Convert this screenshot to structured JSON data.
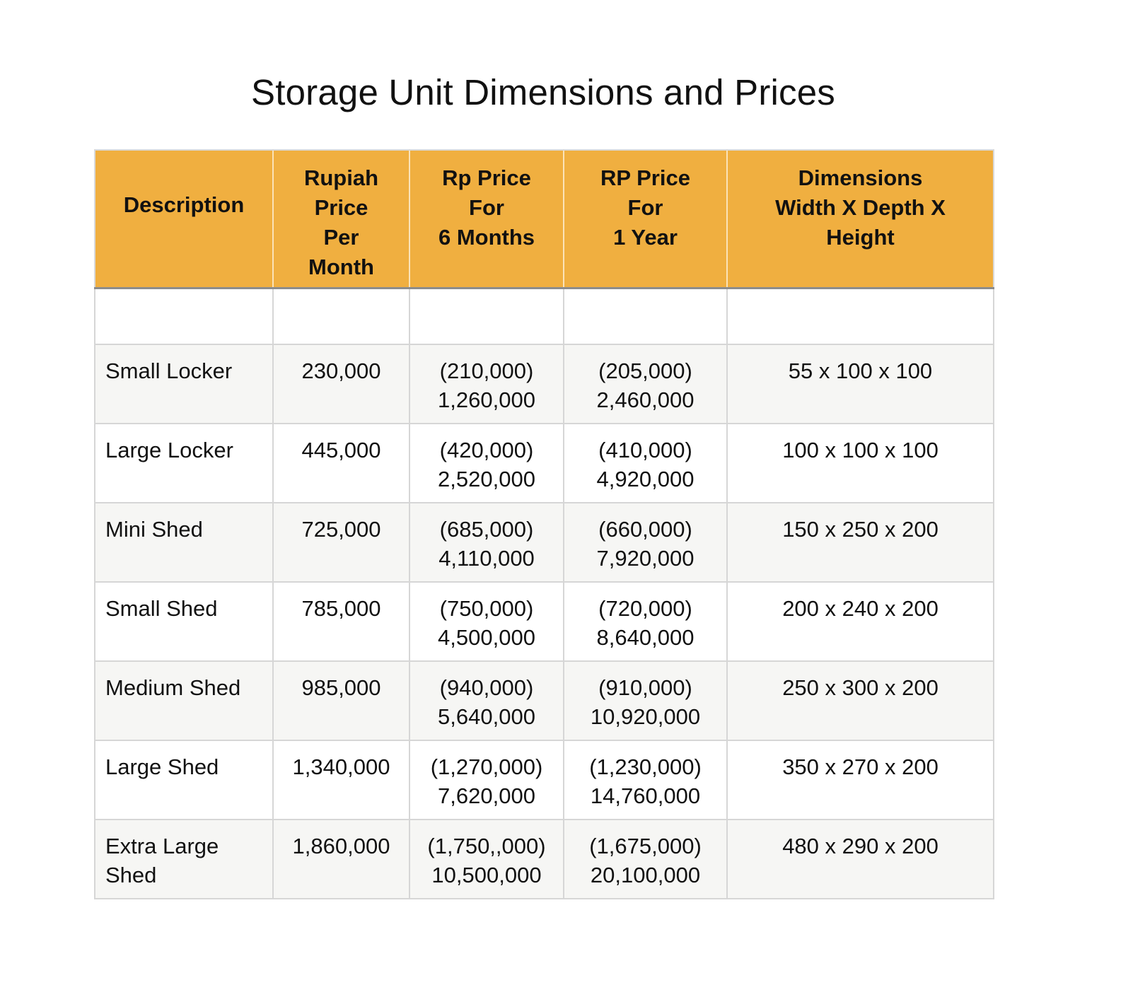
{
  "title": "Storage Unit Dimensions and Prices",
  "colors": {
    "header_background": "#f0af40",
    "shaded_row_background": "#f6f6f4",
    "grid_line": "#d6d6d6"
  },
  "table": {
    "headers": [
      "Description",
      "Rupiah\nPrice\nPer\nMonth",
      "Rp Price\nFor\n6 Months",
      "RP Price\nFor\n1 Year",
      "Dimensions\nWidth X Depth X\nHeight"
    ],
    "empty_row": [
      "",
      "",
      "",
      "",
      ""
    ],
    "rows": [
      {
        "description": "Small Locker",
        "price_per_month": "230,000",
        "price_6_months": "(210,000)\n1,260,000",
        "price_1_year": "(205,000)\n2,460,000",
        "dimensions": "55 x 100 x 100"
      },
      {
        "description": "Large Locker",
        "price_per_month": "445,000",
        "price_6_months": "(420,000)\n2,520,000",
        "price_1_year": "(410,000)\n4,920,000",
        "dimensions": "100 x 100 x 100"
      },
      {
        "description": "Mini Shed",
        "price_per_month": "725,000",
        "price_6_months": "(685,000)\n4,110,000",
        "price_1_year": "(660,000)\n7,920,000",
        "dimensions": "150 x 250 x 200"
      },
      {
        "description": "Small Shed",
        "price_per_month": "785,000",
        "price_6_months": "(750,000)\n4,500,000",
        "price_1_year": "(720,000)\n8,640,000",
        "dimensions": "200 x 240 x 200"
      },
      {
        "description": "Medium Shed",
        "price_per_month": "985,000",
        "price_6_months": "(940,000)\n5,640,000",
        "price_1_year": "(910,000)\n10,920,000",
        "dimensions": "250 x 300 x 200"
      },
      {
        "description": "Large Shed",
        "price_per_month": "1,340,000",
        "price_6_months": "(1,270,000)\n7,620,000",
        "price_1_year": "(1,230,000)\n14,760,000",
        "dimensions": "350 x 270 x 200"
      },
      {
        "description": "Extra Large\nShed",
        "price_per_month": "1,860,000",
        "price_6_months": "(1,750,,000)\n10,500,000",
        "price_1_year": "(1,675,000)\n20,100,000",
        "dimensions": "480 x 290 x 200"
      }
    ]
  }
}
